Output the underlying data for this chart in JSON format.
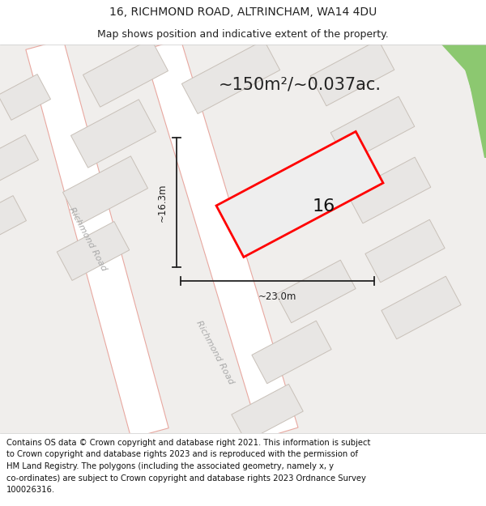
{
  "title_line1": "16, RICHMOND ROAD, ALTRINCHAM, WA14 4DU",
  "title_line2": "Map shows position and indicative extent of the property.",
  "area_text": "~150m²/~0.037ac.",
  "label_16": "16",
  "dim_height": "~16.3m",
  "dim_width": "~23.0m",
  "road_label_1": "Richmond Road",
  "road_label_2": "Richmond Road",
  "footer_text": "Contains OS data © Crown copyright and database right 2021. This information is subject to Crown copyright and database rights 2023 and is reproduced with the permission of HM Land Registry. The polygons (including the associated geometry, namely x, y co-ordinates) are subject to Crown copyright and database rights 2023 Ordnance Survey 100026316.",
  "bg_color": "#f7f7f7",
  "map_bg": "#f0eeec",
  "building_fill": "#e8e6e4",
  "building_edge": "#c8c0b8",
  "road_fill": "#ffffff",
  "road_line_color": "#e8a8a0",
  "highlight_edge": "#ff0000",
  "highlight_fill": "#eeeeee",
  "green_patch": "#8cc870",
  "dim_color": "#222222",
  "title_fontsize": 10,
  "subtitle_fontsize": 9,
  "area_fontsize": 15,
  "label_fontsize": 16,
  "dim_fontsize": 8.5,
  "footer_fontsize": 7.2,
  "road_label_fontsize": 8,
  "title_color": "#222222",
  "footer_color": "#111111"
}
